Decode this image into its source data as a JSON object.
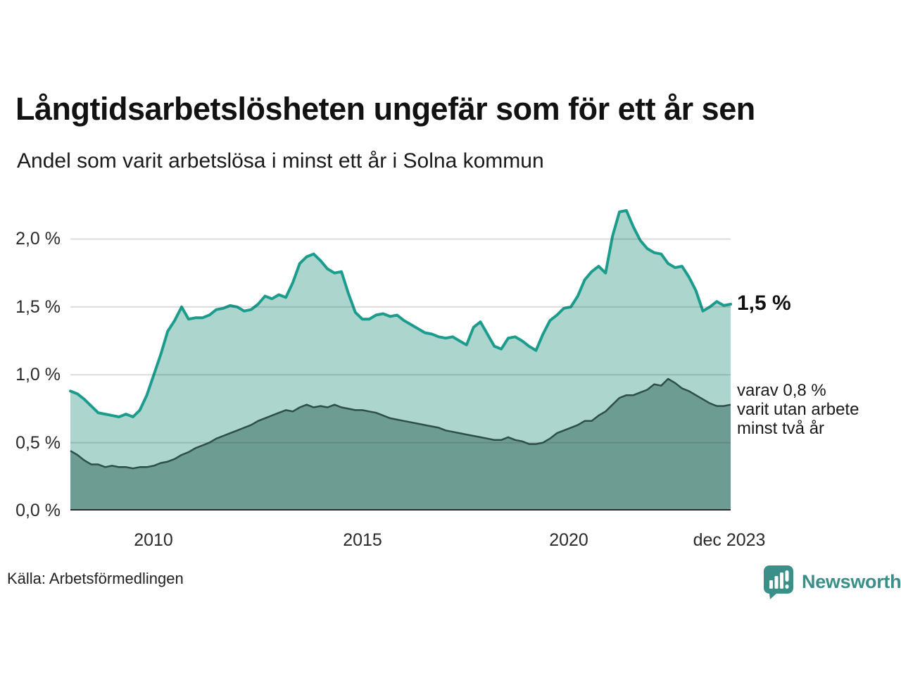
{
  "header": {
    "title": "Långtidsarbetslösheten ungefär som för ett år sen",
    "subtitle": "Andel som varit arbetslösa i minst ett år i Solna kommun"
  },
  "axes": {
    "y_ticks": [
      "2,0 %",
      "1,5 %",
      "1,0 %",
      "0,5 %",
      "0,0 %"
    ],
    "x_ticks": [
      "2010",
      "2015",
      "2020",
      "dec 2023"
    ]
  },
  "annotations": {
    "primary_value": "1,5 %",
    "secondary_line1": "varav 0,8 %",
    "secondary_line2": "varit utan arbete",
    "secondary_line3": "minst två år"
  },
  "footer": {
    "source": "Källa: Arbetsförmedlingen",
    "logo_text": "Newsworthy"
  },
  "colors": {
    "line_primary": "#1B9C8C",
    "fill_primary": "#ABD5CD",
    "line_secondary": "#2E4F49",
    "fill_secondary": "#6C9C92",
    "grid": "#3c3c3c",
    "baseline": "#2b2b2b",
    "logo_teal": "#3A8F88",
    "bars_white": "#ffffff"
  },
  "chart_data": {
    "type": "area",
    "title": "Långtidsarbetslösheten ungefär som för ett år sen",
    "subtitle": "Andel som varit arbetslösa i minst ett år i Solna kommun",
    "unit": "%",
    "x_start_year": 2008.0,
    "x_end_year": 2023.92,
    "x_points_spacing_months": 2,
    "x_tick_labels": [
      "2010",
      "2015",
      "2020",
      "dec 2023"
    ],
    "y_tick_labels": [
      "0,0 %",
      "0,5 %",
      "1,0 %",
      "1,5 %",
      "2,0 %"
    ],
    "ylim": [
      0,
      2.25
    ],
    "y_grid_values": [
      0.5,
      1.0,
      1.5,
      2.0
    ],
    "grid": true,
    "legend_position": "right-annotations",
    "series": [
      {
        "name": "Andel arbetslösa minst ett år",
        "end_label": "1,5 %",
        "end_value": 1.5,
        "values": [
          0.88,
          0.86,
          0.82,
          0.77,
          0.72,
          0.71,
          0.7,
          0.69,
          0.71,
          0.69,
          0.74,
          0.85,
          1.0,
          1.15,
          1.32,
          1.4,
          1.5,
          1.41,
          1.42,
          1.42,
          1.44,
          1.48,
          1.49,
          1.51,
          1.5,
          1.47,
          1.48,
          1.52,
          1.58,
          1.56,
          1.59,
          1.57,
          1.68,
          1.82,
          1.87,
          1.89,
          1.84,
          1.78,
          1.75,
          1.76,
          1.6,
          1.46,
          1.41,
          1.41,
          1.44,
          1.45,
          1.43,
          1.44,
          1.4,
          1.37,
          1.34,
          1.31,
          1.3,
          1.28,
          1.27,
          1.28,
          1.25,
          1.22,
          1.35,
          1.39,
          1.3,
          1.21,
          1.19,
          1.27,
          1.28,
          1.25,
          1.21,
          1.18,
          1.3,
          1.4,
          1.44,
          1.49,
          1.5,
          1.58,
          1.7,
          1.76,
          1.8,
          1.75,
          2.02,
          2.2,
          2.21,
          2.09,
          1.99,
          1.93,
          1.9,
          1.89,
          1.82,
          1.79,
          1.8,
          1.72,
          1.62,
          1.47,
          1.5,
          1.54,
          1.51,
          1.52
        ]
      },
      {
        "name": "varav utan arbete minst två år",
        "end_label": "varav 0,8 % varit utan arbete minst två år",
        "end_value": 0.8,
        "values": [
          0.44,
          0.41,
          0.37,
          0.34,
          0.34,
          0.32,
          0.33,
          0.32,
          0.32,
          0.31,
          0.32,
          0.32,
          0.33,
          0.35,
          0.36,
          0.38,
          0.41,
          0.43,
          0.46,
          0.48,
          0.5,
          0.53,
          0.55,
          0.57,
          0.59,
          0.61,
          0.63,
          0.66,
          0.68,
          0.7,
          0.72,
          0.74,
          0.73,
          0.76,
          0.78,
          0.76,
          0.77,
          0.76,
          0.78,
          0.76,
          0.75,
          0.74,
          0.74,
          0.73,
          0.72,
          0.7,
          0.68,
          0.67,
          0.66,
          0.65,
          0.64,
          0.63,
          0.62,
          0.61,
          0.59,
          0.58,
          0.57,
          0.56,
          0.55,
          0.54,
          0.53,
          0.52,
          0.52,
          0.54,
          0.52,
          0.51,
          0.49,
          0.49,
          0.5,
          0.53,
          0.57,
          0.59,
          0.61,
          0.63,
          0.66,
          0.66,
          0.7,
          0.73,
          0.78,
          0.83,
          0.85,
          0.85,
          0.87,
          0.89,
          0.93,
          0.92,
          0.97,
          0.94,
          0.9,
          0.88,
          0.85,
          0.82,
          0.79,
          0.77,
          0.77,
          0.78
        ]
      }
    ]
  }
}
